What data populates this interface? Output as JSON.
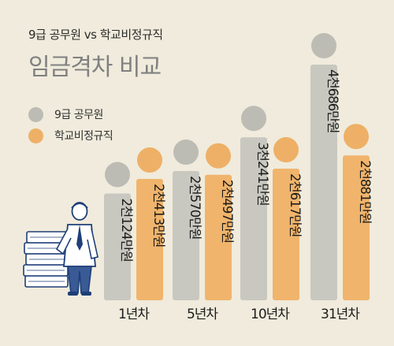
{
  "header": {
    "subtitle": "9급 공무원 vs 학교비정규직",
    "title": "임금격차 비교"
  },
  "colors": {
    "background": "#f0ebdc",
    "civil_servant": "#c8c8c0",
    "civil_servant_dot": "#bcbcb4",
    "non_regular": "#f0b46c",
    "non_regular_dot": "#eeb066"
  },
  "chart_data": {
    "type": "bar",
    "categories": [
      "1년차",
      "5년차",
      "10년차",
      "31년차"
    ],
    "series": [
      {
        "name": "9급 공무원",
        "values": [
          2124,
          2570,
          3241,
          4686
        ],
        "labels": [
          "2천124만원",
          "2천570만원",
          "3천241만원",
          "4천686만원"
        ]
      },
      {
        "name": "학교비정규직",
        "values": [
          2413,
          2497,
          2617,
          2881
        ],
        "labels": [
          "2천413만원",
          "2천497만원",
          "2천617만원",
          "2천881만원"
        ]
      }
    ],
    "unit": "만원",
    "legend": "top-left",
    "grid": false
  }
}
